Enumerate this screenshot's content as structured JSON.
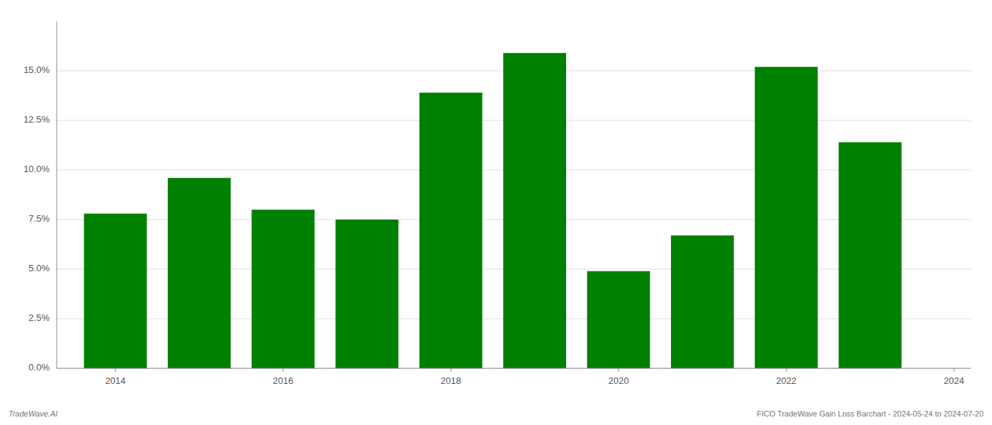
{
  "chart_data": {
    "type": "bar",
    "x": [
      2014,
      2015,
      2016,
      2017,
      2018,
      2019,
      2020,
      2021,
      2022,
      2023
    ],
    "values": [
      0.078,
      0.096,
      0.08,
      0.075,
      0.139,
      0.159,
      0.049,
      0.067,
      0.152,
      0.114
    ],
    "color": "#008000",
    "xlim": [
      2013.3,
      2024.2
    ],
    "xticks": [
      2014,
      2016,
      2018,
      2020,
      2022,
      2024
    ],
    "ylim": [
      0,
      0.175
    ],
    "yticks": [
      {
        "value": 0.0,
        "label": "0.0%"
      },
      {
        "value": 0.025,
        "label": "2.5%"
      },
      {
        "value": 0.05,
        "label": "5.0%"
      },
      {
        "value": 0.075,
        "label": "7.5%"
      },
      {
        "value": 0.1,
        "label": "10.0%"
      },
      {
        "value": 0.125,
        "label": "12.5%"
      },
      {
        "value": 0.15,
        "label": "15.0%"
      }
    ],
    "grid": true,
    "annotations": [
      "TradeWave.AI",
      "FICO TradeWave Gain Loss Barchart - 2024-05-24 to 2024-07-20"
    ]
  }
}
